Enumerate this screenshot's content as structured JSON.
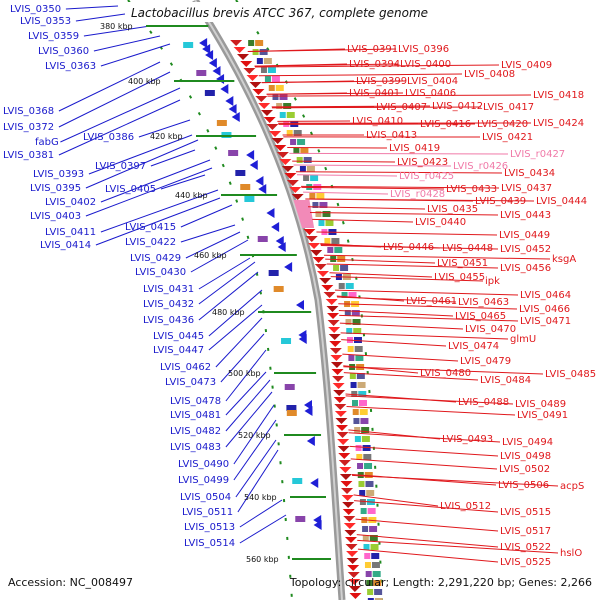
{
  "title": "Lactobacillus brevis ATCC 367, complete genome",
  "footer": {
    "accession": "Accession: NC_008497",
    "summary": "Topology: circular; Length: 2,291,220 bp; Genes: 2,266"
  },
  "colors": {
    "left_label": "#1a1acc",
    "right_label": "#e0181c",
    "rrna_label": "#f07aa8",
    "backbone": "#8c8c8c",
    "tick_mark": "#1f8a1f"
  },
  "ticks": [
    "380 kbp",
    "400 kbp",
    "420 kbp",
    "440 kbp",
    "460 kbp",
    "480 kbp",
    "500 kbp",
    "520 kbp",
    "540 kbp",
    "560 kbp"
  ],
  "left_labels": [
    "LVIS_0350",
    "LVIS_0353",
    "LVIS_0359",
    "LVIS_0360",
    "LVIS_0363",
    "LVIS_0368",
    "LVIS_0372",
    "fabG",
    "LVIS_0381",
    "LVIS_0386",
    "LVIS_0393",
    "LVIS_0395",
    "LVIS_0397",
    "LVIS_0402",
    "LVIS_0403",
    "LVIS_0405",
    "LVIS_0411",
    "LVIS_0414",
    "LVIS_0415",
    "LVIS_0422",
    "LVIS_0429",
    "LVIS_0430",
    "LVIS_0431",
    "LVIS_0432",
    "LVIS_0436",
    "LVIS_0445",
    "LVIS_0447",
    "LVIS_0462",
    "LVIS_0473",
    "LVIS_0478",
    "LVIS_0481",
    "LVIS_0482",
    "LVIS_0483",
    "LVIS_0490",
    "LVIS_0499",
    "LVIS_0504",
    "LVIS_0511",
    "LVIS_0513",
    "LVIS_0514"
  ],
  "right_labels": [
    "LVIS_0391",
    "LVIS_0396",
    "LVIS_0394",
    "LVIS_0400",
    "LVIS_0409",
    "LVIS_0408",
    "LVIS_0399",
    "LVIS_0404",
    "LVIS_0418",
    "LVIS_0401",
    "LVIS_0406",
    "LVIS_0417",
    "LVIS_0407",
    "LVIS_0412",
    "LVIS_0424",
    "LVIS_0410",
    "LVIS_0416",
    "LVIS_0420",
    "LVIS_0421",
    "LVIS_0413",
    "LVIS_0419",
    "LVIS_r0427",
    "LVIS_0423",
    "LVIS_r0426",
    "LVIS_r0425",
    "LVIS_0434",
    "LVIS_0437",
    "LVIS_0433",
    "LVIS_r0428",
    "LVIS_0444",
    "LVIS_0439",
    "LVIS_0435",
    "LVIS_0443",
    "LVIS_0440",
    "LVIS_0449",
    "LVIS_0452",
    "LVIS_0448",
    "LVIS_0446",
    "ksgA",
    "LVIS_0451",
    "LVIS_0456",
    "ipk",
    "LVIS_0455",
    "LVIS_0464",
    "LVIS_0466",
    "LVIS_0463",
    "LVIS_0461",
    "LVIS_0471",
    "LVIS_0465",
    "glmU",
    "LVIS_0470",
    "LVIS_0474",
    "LVIS_0479",
    "LVIS_0485",
    "LVIS_0484",
    "LVIS_0480",
    "LVIS_0489",
    "LVIS_0488",
    "LVIS_0491",
    "LVIS_0494",
    "LVIS_0493",
    "LVIS_0498",
    "LVIS_0502",
    "acpS",
    "LVIS_0506",
    "LVIS_0512",
    "LVIS_0515",
    "LVIS_0517",
    "LVIS_0522",
    "hslO",
    "LVIS_0525"
  ]
}
